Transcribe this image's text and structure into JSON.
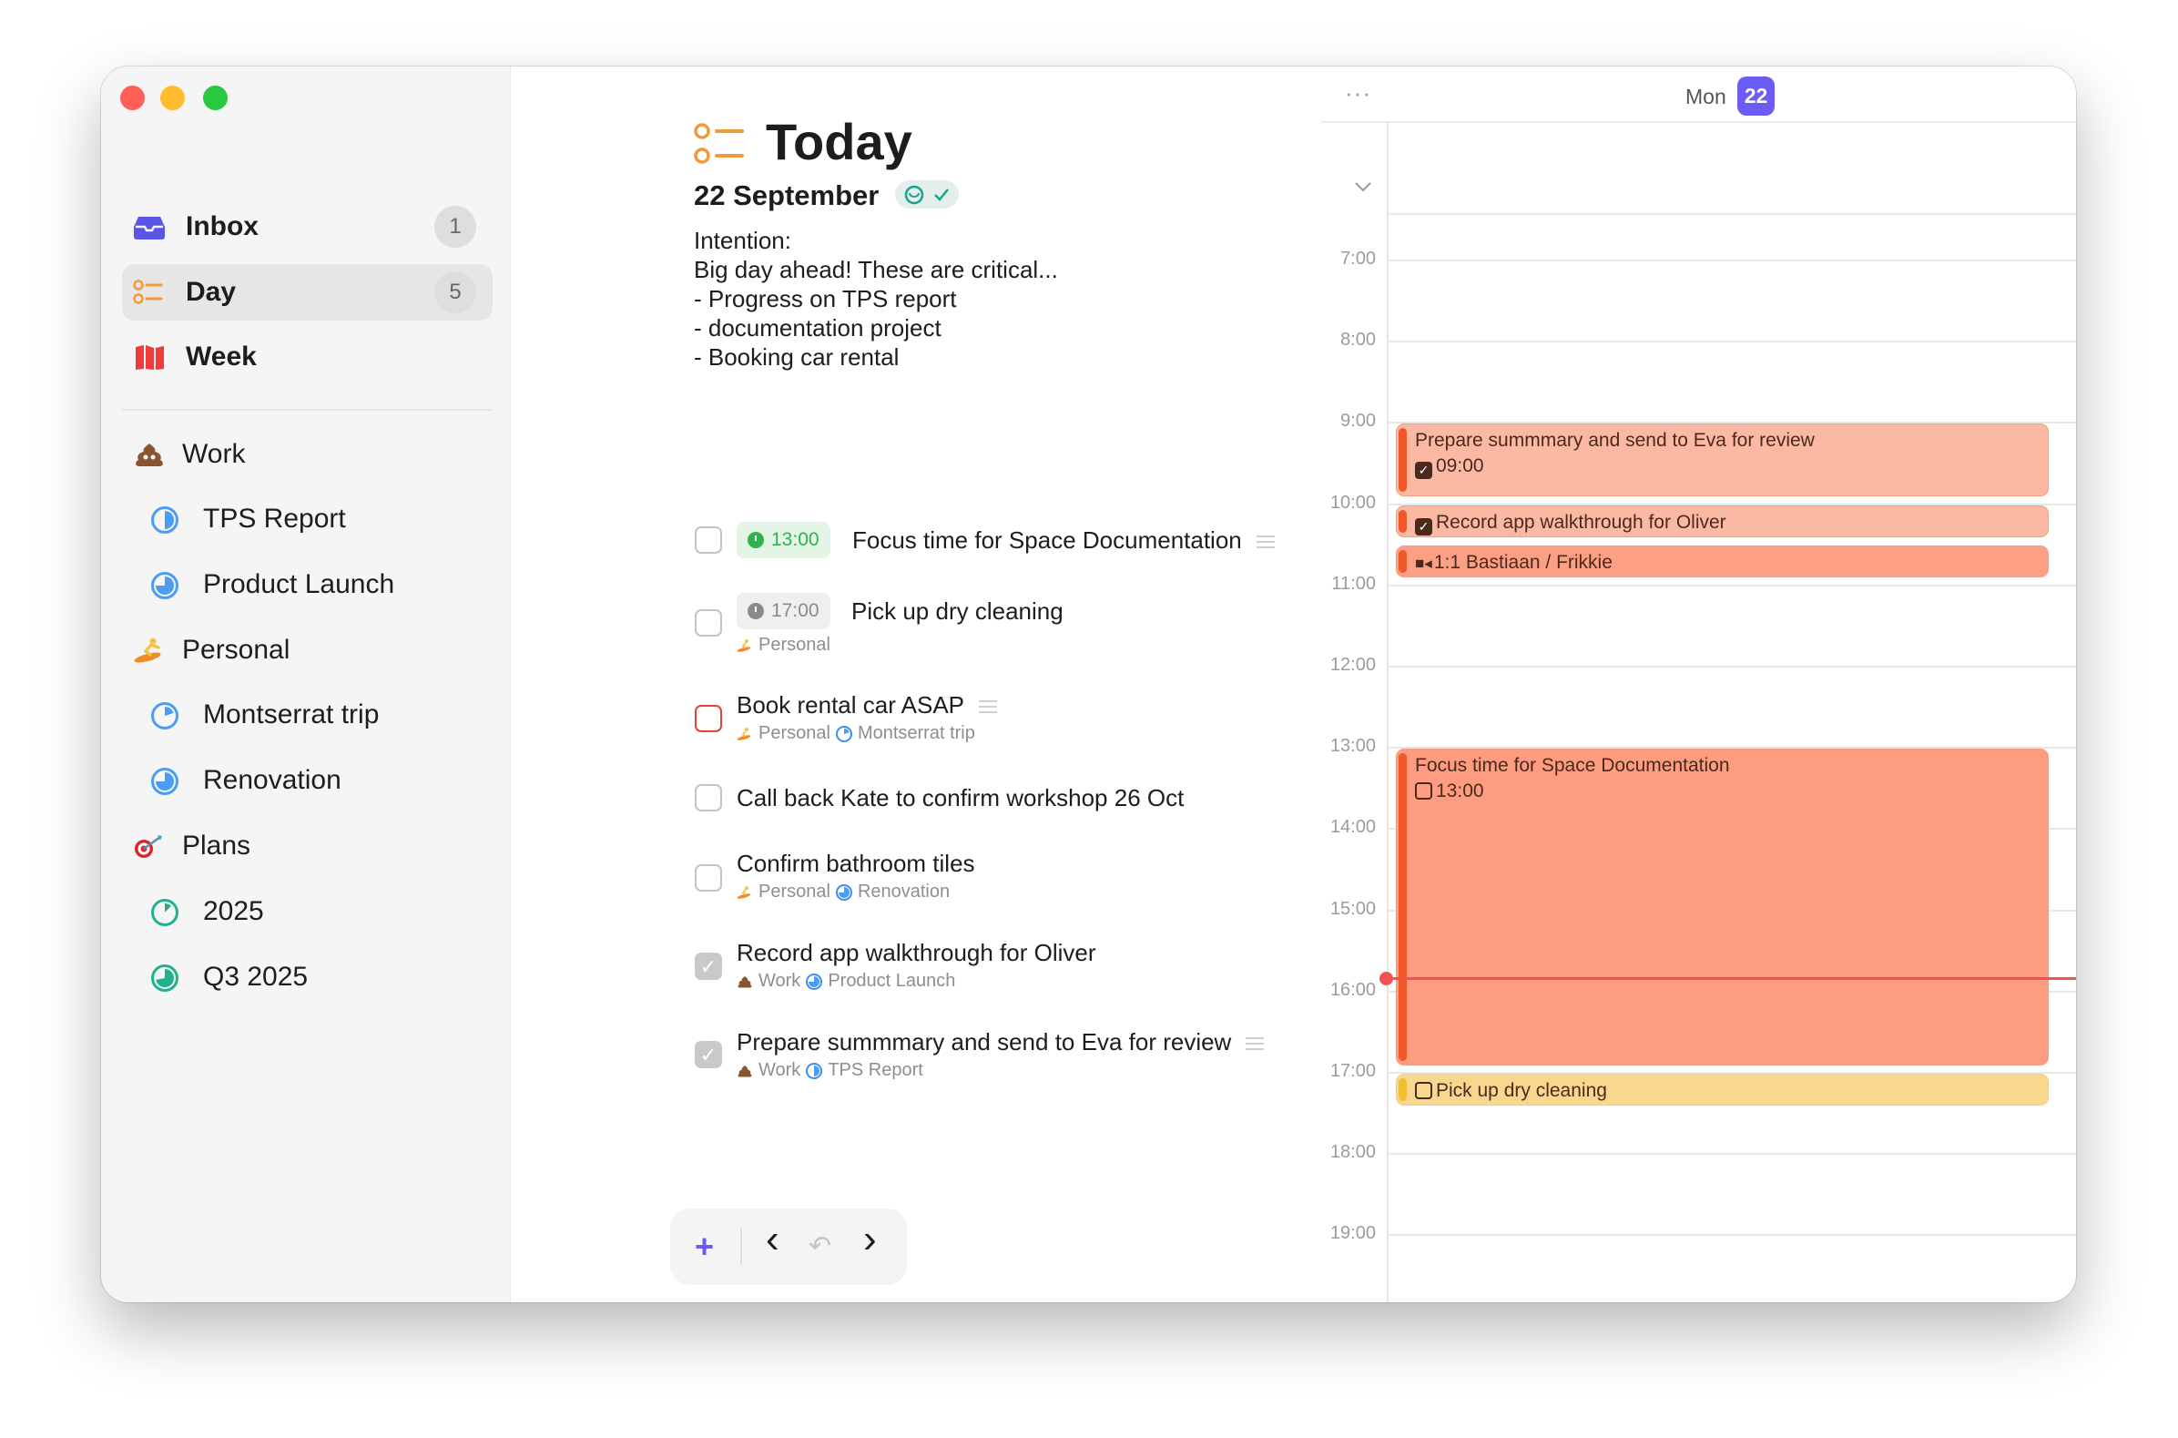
{
  "sidebar": {
    "top_items": [
      {
        "label": "Inbox",
        "count": "1",
        "icon": "inbox-tray-icon",
        "color": "#5b55e6"
      },
      {
        "label": "Day",
        "count": "5",
        "icon": "day-list-icon",
        "color": "#f29a3a",
        "selected": true
      },
      {
        "label": "Week",
        "icon": "week-map-icon",
        "color": "#f03b3b"
      }
    ],
    "areas": [
      {
        "label": "Work",
        "icon": "pile-of-poo-emoji-icon",
        "projects": [
          {
            "label": "TPS Report",
            "progress": 0.5,
            "color": "#4a9cf5"
          },
          {
            "label": "Product Launch",
            "progress": 0.75,
            "color": "#4a9cf5"
          }
        ]
      },
      {
        "label": "Personal",
        "icon": "surfer-emoji-icon",
        "projects": [
          {
            "label": "Montserrat trip",
            "progress": 0.2,
            "color": "#4a9cf5"
          },
          {
            "label": "Renovation",
            "progress": 0.75,
            "color": "#4a9cf5"
          }
        ]
      },
      {
        "label": "Plans",
        "icon": "dart-target-emoji-icon",
        "projects": [
          {
            "label": "2025",
            "progress": 0.12,
            "color": "#20b28f"
          },
          {
            "label": "Q3 2025",
            "progress": 0.72,
            "color": "#20b28f"
          }
        ]
      }
    ]
  },
  "main": {
    "title": "Today",
    "date": "22 September",
    "intention": "Intention:\nBig day ahead! These are critical...\n- Progress on TPS report\n- documentation project\n- Booking car rental",
    "tasks": [
      {
        "title": "Focus time for Space Documentation",
        "time": "13:00",
        "done": false,
        "has_notes": true
      },
      {
        "title": "Pick up dry cleaning",
        "time": "17:00",
        "area": "Personal",
        "done": false
      },
      {
        "title": "Book rental car ASAP",
        "area": "Personal",
        "project": "Montserrat trip",
        "done": false,
        "overdue": true,
        "has_notes": true
      },
      {
        "title": "Call back Kate to confirm workshop 26 Oct",
        "done": false
      },
      {
        "title": "Confirm bathroom tiles",
        "area": "Personal",
        "project": "Renovation",
        "done": false
      },
      {
        "title": "Record app walkthrough for Oliver",
        "area": "Work",
        "project": "Product Launch",
        "done": true
      },
      {
        "title": "Prepare summmary and send to Eva for review",
        "area": "Work",
        "project": "TPS Report",
        "done": true,
        "has_notes": true
      }
    ],
    "toolbar": {
      "add": "+",
      "back": "‹",
      "undo": "↶",
      "forward": "›"
    }
  },
  "calendar": {
    "more": "···",
    "day_name": "Mon",
    "day_number": "22",
    "accent": "#6b5cf6",
    "hours": [
      "7:00",
      "8:00",
      "9:00",
      "10:00",
      "11:00",
      "12:00",
      "13:00",
      "14:00",
      "15:00",
      "16:00",
      "17:00",
      "18:00",
      "19:00"
    ],
    "now": "15:50",
    "events": [
      {
        "title": "Prepare summmary and send to Eva for review",
        "time_label": "09:00",
        "start": "09:00",
        "end": "09:55",
        "kind": "task",
        "checked": true,
        "color": "#fbb9a4",
        "bar": "#f0582a"
      },
      {
        "title": "Record app walkthrough for Oliver",
        "start": "10:00",
        "end": "10:25",
        "kind": "task",
        "checked": true,
        "color": "#fbb9a4",
        "bar": "#f0582a"
      },
      {
        "title": "1:1 Bastiaan / Frikkie",
        "start": "10:30",
        "end": "10:55",
        "kind": "meeting",
        "color": "#fd9f84",
        "bar": "#f0582a"
      },
      {
        "title": "Focus time for Space Documentation",
        "time_label": "13:00",
        "start": "13:00",
        "end": "16:55",
        "kind": "task",
        "checked": false,
        "color": "#fd9c80",
        "bar": "#f0582a"
      },
      {
        "title": "Pick up dry cleaning",
        "start": "17:00",
        "end": "17:25",
        "kind": "task",
        "checked": false,
        "color": "#f8d78e",
        "bar": "#f2bf33"
      }
    ]
  }
}
